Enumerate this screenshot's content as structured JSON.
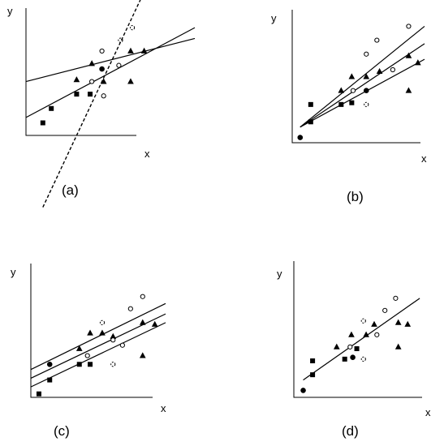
{
  "panels": [
    {
      "id": "a",
      "label": "(a)",
      "xlabel": "x",
      "ylabel": "y",
      "lines": [
        {
          "style": "solid",
          "p1": [
            0,
            3.0
          ],
          "p2": [
            10,
            5.4
          ]
        },
        {
          "style": "solid",
          "p1": [
            0,
            1.0
          ],
          "p2": [
            10,
            6.0
          ]
        },
        {
          "style": "dashed",
          "p1": [
            1,
            -4.0
          ],
          "p2": [
            7,
            8.0
          ]
        }
      ],
      "points": [
        {
          "m": "square",
          "x": 1.0,
          "y": 0.7
        },
        {
          "m": "square",
          "x": 1.5,
          "y": 1.5
        },
        {
          "m": "square",
          "x": 3.0,
          "y": 2.3
        },
        {
          "m": "square",
          "x": 3.8,
          "y": 2.3
        },
        {
          "m": "triangle",
          "x": 3.0,
          "y": 3.1
        },
        {
          "m": "triangle",
          "x": 3.9,
          "y": 4.0
        },
        {
          "m": "triangle",
          "x": 4.6,
          "y": 3.0
        },
        {
          "m": "triangle",
          "x": 6.2,
          "y": 3.0
        },
        {
          "m": "triangle",
          "x": 6.2,
          "y": 4.7
        },
        {
          "m": "triangle",
          "x": 7.0,
          "y": 4.7
        },
        {
          "m": "circle_open",
          "x": 4.5,
          "y": 4.7
        },
        {
          "m": "circle_open",
          "x": 3.9,
          "y": 3.0
        },
        {
          "m": "circle_open",
          "x": 4.6,
          "y": 2.2
        },
        {
          "m": "circle_open",
          "x": 5.5,
          "y": 3.9
        },
        {
          "m": "circle_half",
          "x": 5.6,
          "y": 5.3
        },
        {
          "m": "circle_half",
          "x": 6.3,
          "y": 6.0
        },
        {
          "m": "circle_filled",
          "x": 4.5,
          "y": 3.7
        }
      ]
    },
    {
      "id": "b",
      "label": "(b)",
      "xlabel": "x",
      "ylabel": "y",
      "lines": [
        {
          "style": "solid",
          "p1": [
            0.6,
            0.9
          ],
          "p2": [
            10,
            6.7
          ]
        },
        {
          "style": "solid",
          "p1": [
            0.6,
            0.9
          ],
          "p2": [
            10,
            5.7
          ]
        },
        {
          "style": "solid",
          "p1": [
            0.6,
            0.9
          ],
          "p2": [
            10,
            4.8
          ]
        }
      ],
      "points": [
        {
          "m": "circle_filled",
          "x": 0.6,
          "y": 0.3
        },
        {
          "m": "square",
          "x": 1.4,
          "y": 1.2
        },
        {
          "m": "square",
          "x": 1.4,
          "y": 2.2
        },
        {
          "m": "square",
          "x": 3.7,
          "y": 2.2
        },
        {
          "m": "square",
          "x": 4.5,
          "y": 2.3
        },
        {
          "m": "triangle",
          "x": 3.7,
          "y": 3.0
        },
        {
          "m": "triangle",
          "x": 4.5,
          "y": 3.8
        },
        {
          "m": "triangle",
          "x": 5.6,
          "y": 3.8
        },
        {
          "m": "triangle",
          "x": 6.6,
          "y": 4.1
        },
        {
          "m": "triangle",
          "x": 8.8,
          "y": 3.0
        },
        {
          "m": "triangle",
          "x": 8.8,
          "y": 5.0
        },
        {
          "m": "triangle",
          "x": 9.5,
          "y": 4.6
        },
        {
          "m": "circle_open",
          "x": 4.6,
          "y": 3.0
        },
        {
          "m": "circle_open",
          "x": 5.6,
          "y": 5.1
        },
        {
          "m": "circle_open",
          "x": 6.4,
          "y": 5.9
        },
        {
          "m": "circle_open",
          "x": 7.6,
          "y": 4.2
        },
        {
          "m": "circle_open",
          "x": 8.8,
          "y": 6.7
        },
        {
          "m": "circle_half",
          "x": 5.6,
          "y": 2.2
        },
        {
          "m": "circle_filled",
          "x": 5.6,
          "y": 3.0
        }
      ]
    },
    {
      "id": "c",
      "label": "(c)",
      "xlabel": "x",
      "ylabel": "y",
      "lines": [
        {
          "style": "solid",
          "p1": [
            0,
            1.6
          ],
          "p2": [
            10,
            5.4
          ]
        },
        {
          "style": "solid",
          "p1": [
            0,
            1.1
          ],
          "p2": [
            10,
            4.8
          ]
        },
        {
          "style": "solid",
          "p1": [
            0,
            0.6
          ],
          "p2": [
            10,
            4.3
          ]
        }
      ],
      "points": [
        {
          "m": "square",
          "x": 0.6,
          "y": 0.2
        },
        {
          "m": "square",
          "x": 1.4,
          "y": 1.0
        },
        {
          "m": "square",
          "x": 3.6,
          "y": 1.9
        },
        {
          "m": "square",
          "x": 4.4,
          "y": 1.9
        },
        {
          "m": "circle_filled",
          "x": 1.4,
          "y": 1.9
        },
        {
          "m": "triangle",
          "x": 3.6,
          "y": 2.8
        },
        {
          "m": "triangle",
          "x": 4.4,
          "y": 3.7
        },
        {
          "m": "triangle",
          "x": 5.3,
          "y": 3.7
        },
        {
          "m": "triangle",
          "x": 6.1,
          "y": 3.5
        },
        {
          "m": "triangle",
          "x": 8.3,
          "y": 2.4
        },
        {
          "m": "triangle",
          "x": 8.3,
          "y": 4.3
        },
        {
          "m": "triangle",
          "x": 9.2,
          "y": 4.2
        },
        {
          "m": "circle_open",
          "x": 4.2,
          "y": 2.4
        },
        {
          "m": "circle_open",
          "x": 6.1,
          "y": 3.3
        },
        {
          "m": "circle_open",
          "x": 6.8,
          "y": 3.0
        },
        {
          "m": "circle_open",
          "x": 7.4,
          "y": 5.1
        },
        {
          "m": "circle_open",
          "x": 8.3,
          "y": 5.8
        },
        {
          "m": "circle_half",
          "x": 5.3,
          "y": 4.3
        },
        {
          "m": "circle_half",
          "x": 6.1,
          "y": 1.9
        }
      ]
    },
    {
      "id": "d",
      "label": "(d)",
      "xlabel": "x",
      "ylabel": "y",
      "lines": [
        {
          "style": "solid",
          "p1": [
            0.7,
            1.0
          ],
          "p2": [
            9.4,
            5.7
          ]
        }
      ],
      "points": [
        {
          "m": "circle_filled",
          "x": 0.7,
          "y": 0.4
        },
        {
          "m": "square",
          "x": 1.4,
          "y": 1.3
        },
        {
          "m": "square",
          "x": 1.4,
          "y": 2.1
        },
        {
          "m": "square",
          "x": 3.8,
          "y": 2.2
        },
        {
          "m": "square",
          "x": 4.7,
          "y": 2.8
        },
        {
          "m": "triangle",
          "x": 3.2,
          "y": 2.9
        },
        {
          "m": "triangle",
          "x": 4.3,
          "y": 3.6
        },
        {
          "m": "triangle",
          "x": 5.4,
          "y": 3.6
        },
        {
          "m": "triangle",
          "x": 6.0,
          "y": 4.2
        },
        {
          "m": "triangle",
          "x": 7.8,
          "y": 2.9
        },
        {
          "m": "triangle",
          "x": 7.8,
          "y": 4.3
        },
        {
          "m": "triangle",
          "x": 8.5,
          "y": 4.2
        },
        {
          "m": "circle_open",
          "x": 4.2,
          "y": 2.9
        },
        {
          "m": "circle_open",
          "x": 6.2,
          "y": 3.6
        },
        {
          "m": "circle_open",
          "x": 6.8,
          "y": 5.0
        },
        {
          "m": "circle_open",
          "x": 7.6,
          "y": 5.7
        },
        {
          "m": "circle_half",
          "x": 5.2,
          "y": 4.4
        },
        {
          "m": "circle_half",
          "x": 5.2,
          "y": 2.2
        },
        {
          "m": "circle_filled",
          "x": 4.4,
          "y": 2.3
        }
      ]
    }
  ]
}
